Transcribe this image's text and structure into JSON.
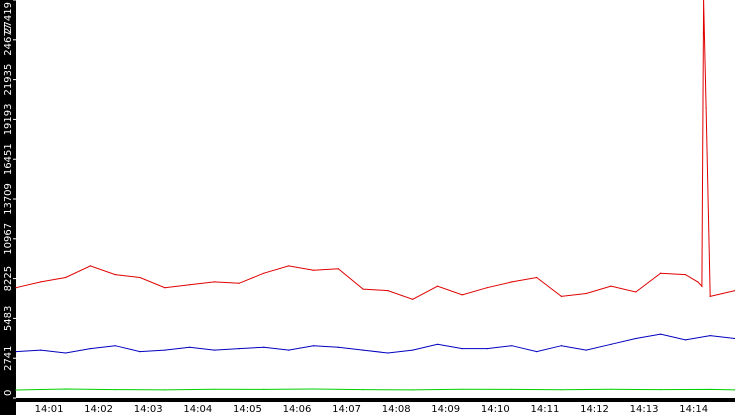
{
  "chart_data": {
    "type": "line",
    "title": "",
    "xlabel": "",
    "ylabel": "",
    "ylim": [
      0,
      27419
    ],
    "xlim": [
      "14:00:20",
      "14:14:50"
    ],
    "grid": false,
    "legend": "none",
    "y_tick_labels": [
      "0",
      "2741",
      "5483",
      "8225",
      "10967",
      "13709",
      "16451",
      "19193",
      "21935",
      "24677",
      "27419"
    ],
    "x_tick_labels": [
      "14:01",
      "14:02",
      "14:03",
      "14:04",
      "14:05",
      "14:06",
      "14:07",
      "14:08",
      "14:09",
      "14:10",
      "14:11",
      "14:12",
      "14:13",
      "14:14"
    ],
    "colors": {
      "axis_band": "#000000",
      "axis_text": "#ffffff",
      "background": "#ffffff"
    },
    "series": [
      {
        "color": "#e00000",
        "x": [
          "14:00:20",
          "14:00:50",
          "14:01:20",
          "14:01:50",
          "14:02:20",
          "14:02:50",
          "14:03:20",
          "14:03:50",
          "14:04:20",
          "14:04:50",
          "14:05:20",
          "14:05:50",
          "14:06:20",
          "14:06:50",
          "14:07:20",
          "14:07:50",
          "14:08:20",
          "14:08:50",
          "14:09:20",
          "14:09:50",
          "14:10:20",
          "14:10:50",
          "14:11:20",
          "14:11:50",
          "14:12:20",
          "14:12:50",
          "14:13:20",
          "14:13:50",
          "14:14:05",
          "14:14:10",
          "14:14:12",
          "14:14:15",
          "14:14:20",
          "14:14:35",
          "14:14:50"
        ],
        "values": [
          7600,
          8000,
          8300,
          9100,
          8500,
          8300,
          7600,
          7800,
          8000,
          7900,
          8600,
          9100,
          8800,
          8900,
          7500,
          7400,
          6800,
          7700,
          7100,
          7600,
          8000,
          8300,
          7000,
          7200,
          7700,
          7300,
          8600,
          8500,
          8000,
          7700,
          29000,
          20000,
          7000,
          7200,
          7400
        ]
      },
      {
        "color": "#0000c0",
        "x": [
          "14:00:20",
          "14:00:50",
          "14:01:20",
          "14:01:50",
          "14:02:20",
          "14:02:50",
          "14:03:20",
          "14:03:50",
          "14:04:20",
          "14:04:50",
          "14:05:20",
          "14:05:50",
          "14:06:20",
          "14:06:50",
          "14:07:20",
          "14:07:50",
          "14:08:20",
          "14:08:50",
          "14:09:20",
          "14:09:50",
          "14:10:20",
          "14:10:50",
          "14:11:20",
          "14:11:50",
          "14:12:20",
          "14:12:50",
          "14:13:20",
          "14:13:50",
          "14:14:20",
          "14:14:50"
        ],
        "values": [
          3200,
          3300,
          3100,
          3400,
          3600,
          3200,
          3300,
          3500,
          3300,
          3400,
          3500,
          3300,
          3600,
          3500,
          3300,
          3100,
          3300,
          3700,
          3400,
          3400,
          3600,
          3200,
          3600,
          3300,
          3700,
          4100,
          4400,
          4000,
          4300,
          4100
        ]
      },
      {
        "color": "#00d000",
        "x": [
          "14:00:20",
          "14:01:20",
          "14:02:20",
          "14:03:20",
          "14:04:20",
          "14:05:20",
          "14:06:20",
          "14:07:20",
          "14:08:20",
          "14:09:20",
          "14:10:20",
          "14:11:20",
          "14:12:20",
          "14:13:20",
          "14:14:20",
          "14:14:50"
        ],
        "values": [
          550,
          620,
          580,
          560,
          600,
          590,
          620,
          580,
          560,
          600,
          590,
          570,
          600,
          580,
          590,
          560
        ]
      }
    ]
  }
}
